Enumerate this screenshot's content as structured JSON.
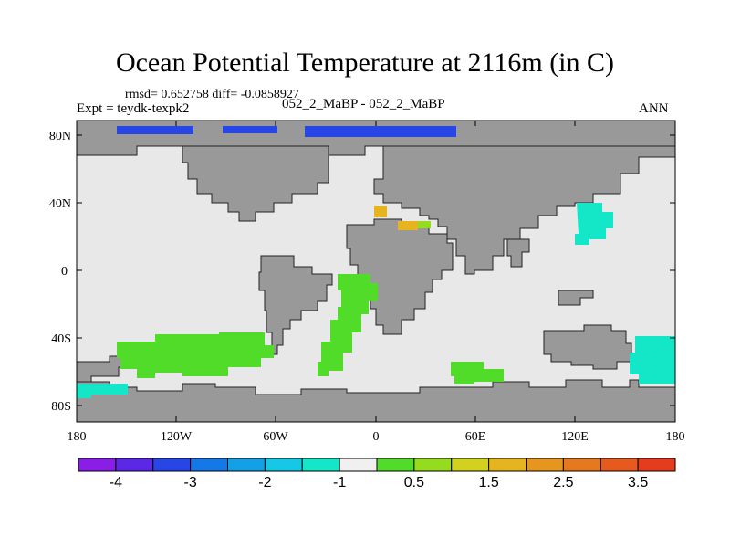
{
  "title": "Ocean Potential Temperature at 2116m (in C)",
  "stats": "rmsd= 0.652758 diff= -0.0858927",
  "expt": "Expt = teydk-texpk2",
  "cases": "052_2_MaBP - 052_2_MaBP",
  "season": "ANN",
  "lat_ticks": [
    "80N",
    "40N",
    "0",
    "40S",
    "80S"
  ],
  "lon_ticks": [
    "180",
    "120W",
    "60W",
    "0",
    "60E",
    "120E",
    "180"
  ],
  "colorbar": {
    "labels": [
      "-4",
      "-3",
      "-2",
      "-1",
      "0.5",
      "1.5",
      "2.5",
      "3.5"
    ],
    "colors": [
      "#8a1ee6",
      "#5a28e6",
      "#2846e6",
      "#1478e6",
      "#14a0e6",
      "#14c8e6",
      "#14e6c8",
      "#f0f0f0",
      "#50dc28",
      "#96dc1e",
      "#d2d21e",
      "#e6b41e",
      "#e6961e",
      "#e6781e",
      "#e65a1e",
      "#e63c1e"
    ]
  },
  "colors": {
    "ocean": "#e8e8e8",
    "land": "#999999"
  }
}
